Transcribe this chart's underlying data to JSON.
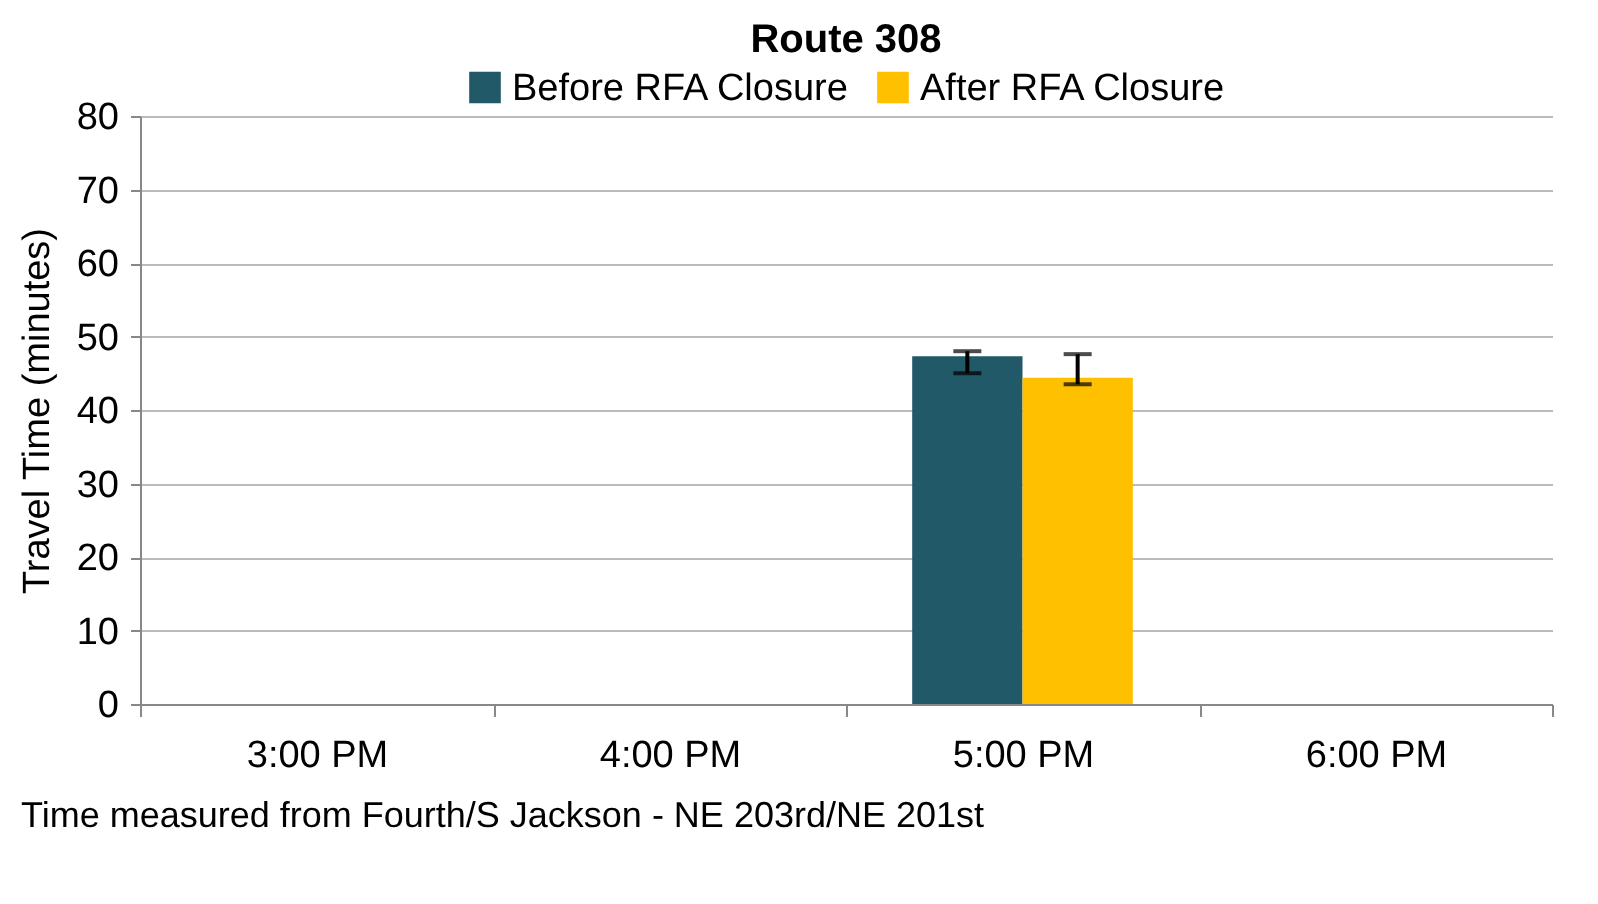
{
  "chart_data": {
    "type": "bar",
    "title": "Route 308",
    "xlabel": "Time measured from Fourth/S Jackson - NE 203rd/NE 201st",
    "ylabel": "Travel Time (minutes)",
    "categories": [
      "3:00 PM",
      "4:00 PM",
      "5:00 PM",
      "6:00 PM"
    ],
    "series": [
      {
        "name": "Before RFA Closure",
        "color": "#215968",
        "values": [
          null,
          null,
          47.3,
          null
        ],
        "errors": [
          null,
          null,
          [
            45,
            48
          ],
          null
        ]
      },
      {
        "name": "After RFA Closure",
        "color": "#ffc000",
        "values": [
          null,
          null,
          44.4,
          null
        ],
        "errors": [
          null,
          null,
          [
            43.5,
            47.6
          ],
          null
        ]
      }
    ],
    "ylim": [
      0,
      80
    ],
    "yticks": [
      0,
      10,
      20,
      30,
      40,
      50,
      60,
      70,
      80
    ],
    "grid": "y",
    "legend": "top"
  }
}
